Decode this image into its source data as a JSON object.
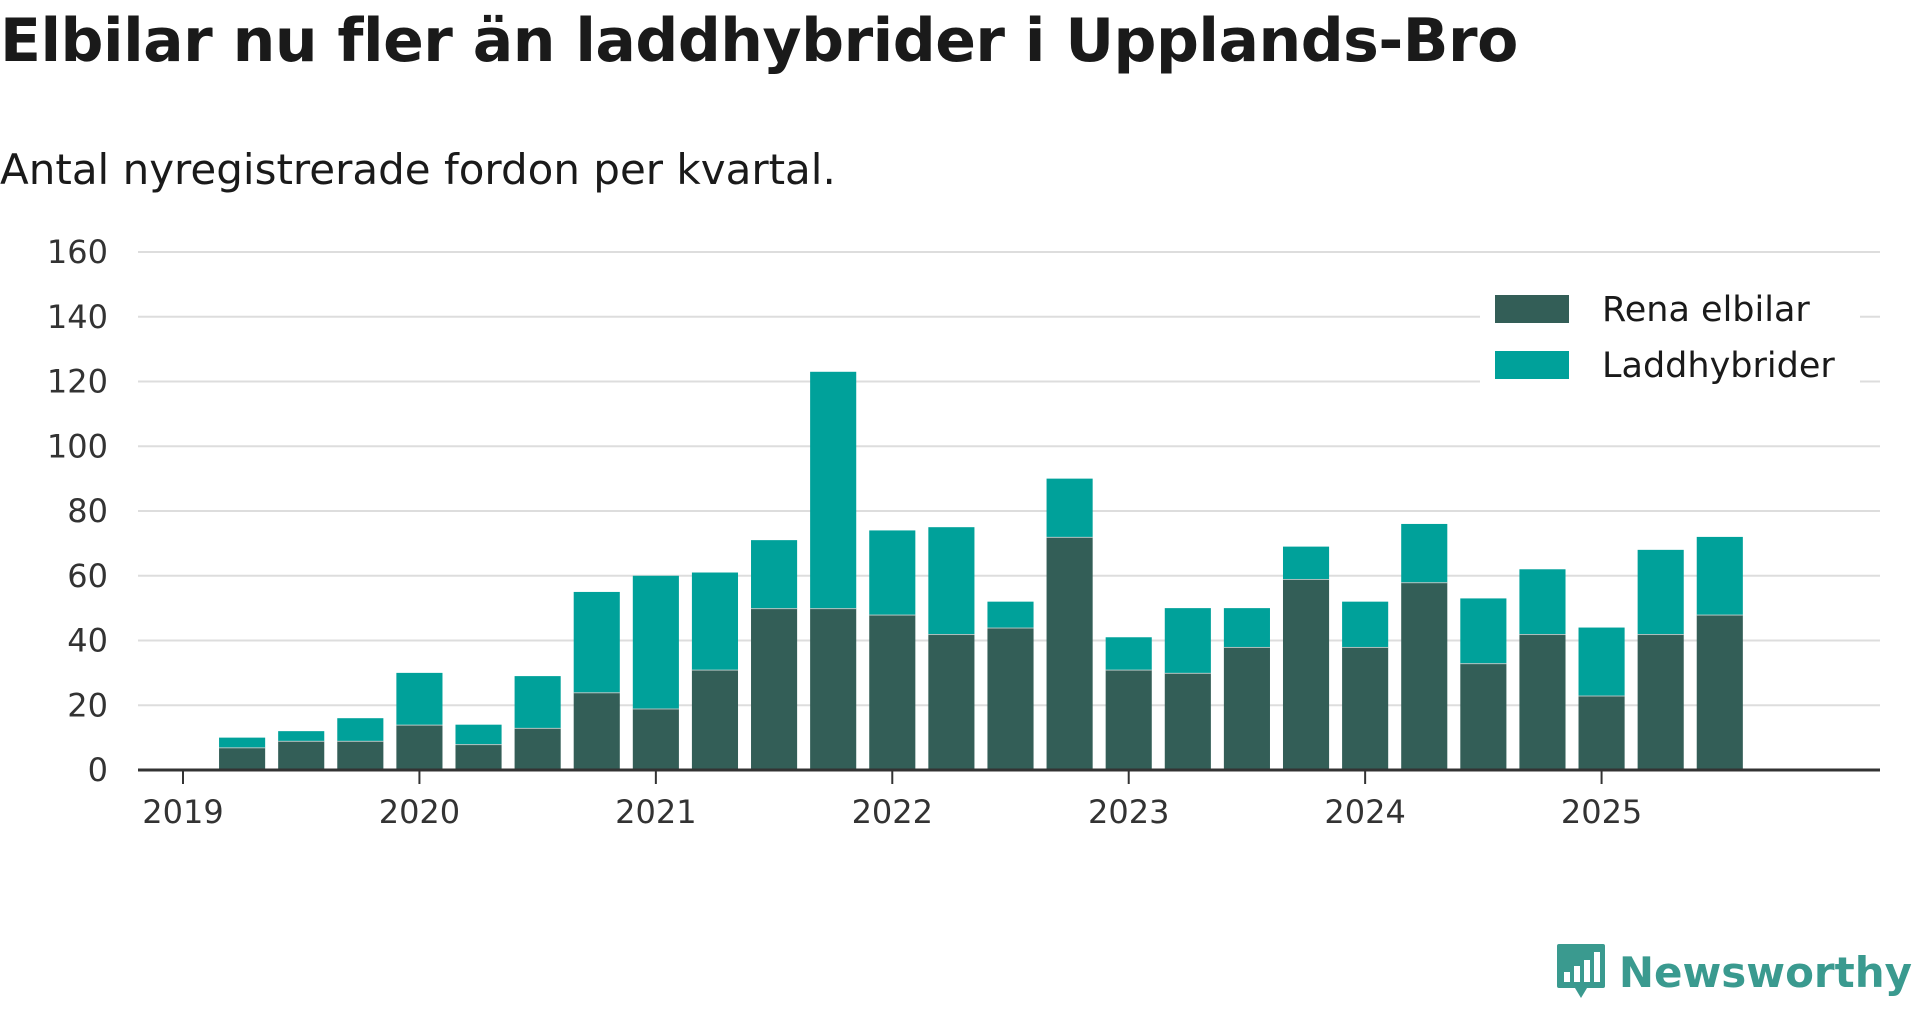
{
  "chart_data": {
    "type": "bar",
    "stacked": true,
    "title": "Elbilar nu fler än laddhybrider i Upplands-Bro",
    "subtitle": "Antal nyregistrerade fordon per kvartal.",
    "xlabel": "",
    "ylabel": "",
    "ylim": [
      0,
      160
    ],
    "yticks": [
      0,
      20,
      40,
      60,
      80,
      100,
      120,
      140,
      160
    ],
    "xticks": [
      "2019",
      "2020",
      "2021",
      "2022",
      "2023",
      "2024",
      "2025"
    ],
    "legend_position": "top-right",
    "grid": true,
    "categories": [
      "2019 Q2",
      "2019 Q3",
      "2019 Q4",
      "2020 Q1",
      "2020 Q2",
      "2020 Q3",
      "2020 Q4",
      "2021 Q1",
      "2021 Q2",
      "2021 Q3",
      "2021 Q4",
      "2022 Q1",
      "2022 Q2",
      "2022 Q3",
      "2022 Q4",
      "2023 Q1",
      "2023 Q2",
      "2023 Q3",
      "2023 Q4",
      "2024 Q1",
      "2024 Q2",
      "2024 Q3",
      "2024 Q4",
      "2025 Q1",
      "2025 Q2",
      "2025 Q3"
    ],
    "series": [
      {
        "name": "Rena elbilar",
        "color": "#335e57",
        "values": [
          7,
          9,
          9,
          14,
          8,
          13,
          24,
          19,
          31,
          50,
          50,
          48,
          42,
          44,
          72,
          31,
          30,
          38,
          59,
          38,
          58,
          33,
          42,
          23,
          42,
          48
        ]
      },
      {
        "name": "Laddhybrider",
        "color": "#00a19a",
        "values": [
          3,
          3,
          7,
          16,
          6,
          16,
          31,
          41,
          30,
          21,
          73,
          26,
          33,
          8,
          18,
          10,
          20,
          12,
          10,
          14,
          18,
          20,
          20,
          21,
          26,
          24
        ]
      }
    ]
  },
  "brand": {
    "name": "Newsworthy",
    "color": "#3a9a8f",
    "icon": "newsworthy-logo-icon"
  }
}
